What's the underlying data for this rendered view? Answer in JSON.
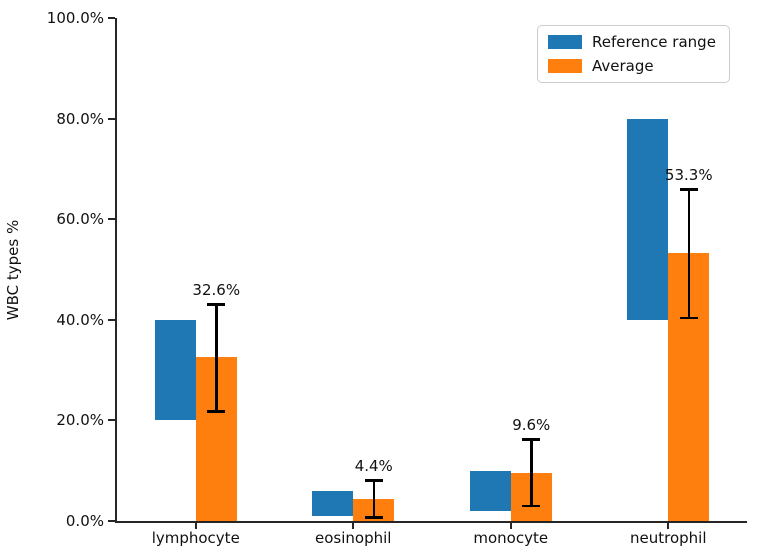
{
  "figure": {
    "background": "#ffffff",
    "axis_color": "#262626",
    "text_color": "#111111"
  },
  "chart_data": {
    "type": "bar",
    "title": "",
    "xlabel": "",
    "ylabel": "WBC types %",
    "ylim": [
      0,
      100
    ],
    "yticks": [
      0,
      20,
      40,
      60,
      80,
      100
    ],
    "ytick_labels": [
      "0.0%",
      "20.0%",
      "40.0%",
      "60.0%",
      "80.0%",
      "100.0%"
    ],
    "categories": [
      "lymphocyte",
      "eosinophil",
      "monocyte",
      "neutrophil"
    ],
    "grid": false,
    "legend_position": "upper right",
    "series": [
      {
        "name": "Reference range",
        "color": "#1f77b4",
        "type": "range-bar",
        "ranges": [
          [
            20,
            40
          ],
          [
            1,
            6
          ],
          [
            2,
            10
          ],
          [
            40,
            80
          ]
        ]
      },
      {
        "name": "Average",
        "color": "#ff7f0e",
        "type": "bar",
        "values": [
          32.6,
          4.4,
          9.6,
          53.3
        ],
        "value_labels": [
          "32.6%",
          "4.4%",
          "9.6%",
          "53.3%"
        ],
        "error_low": [
          21.7,
          0.6,
          2.9,
          40.3
        ],
        "error_high": [
          43.1,
          8.1,
          16.3,
          66.0
        ],
        "error_color": "#000000"
      }
    ]
  }
}
